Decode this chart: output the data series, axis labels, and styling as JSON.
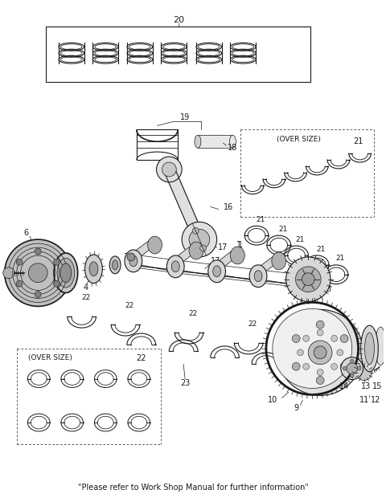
{
  "footer_text": "\"Please refer to Work Shop Manual for further information\"",
  "bg_color": "#ffffff",
  "line_color": "#1a1a1a",
  "fig_width": 4.8,
  "fig_height": 6.25,
  "dpi": 100
}
